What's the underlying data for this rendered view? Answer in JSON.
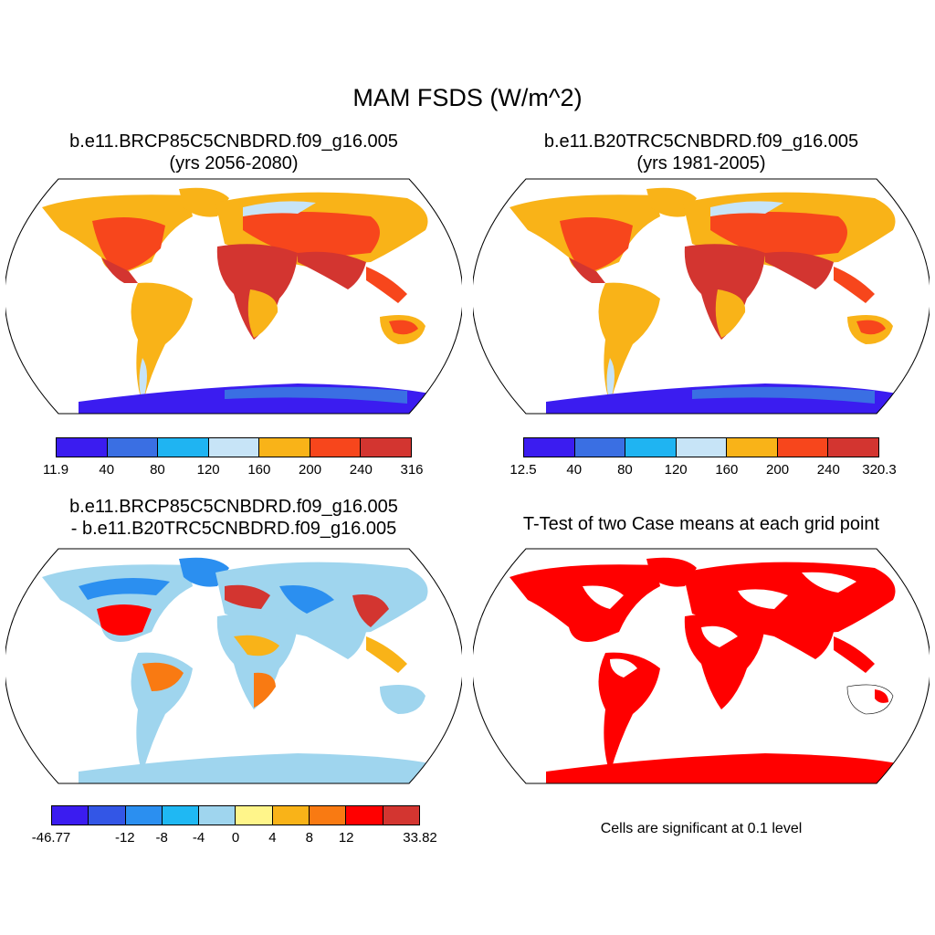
{
  "title": "MAM FSDS (W/m^2)",
  "panels": {
    "p1": {
      "line1": "b.e11.BRCP85C5CNBDRD.f09_g16.005",
      "line2": "(yrs 2056-2080)"
    },
    "p2": {
      "line1": "b.e11.B20TRC5CNBDRD.f09_g16.005",
      "line2": "(yrs 1981-2005)"
    },
    "p3": {
      "line1": "b.e11.BRCP85C5CNBDRD.f09_g16.005",
      "line2": "- b.e11.B20TRC5CNBDRD.f09_g16.005"
    },
    "p4": {
      "line1": "T-Test of two Case means at each grid point"
    }
  },
  "colorbars": {
    "cb1": {
      "colors": [
        "#3b1cf0",
        "#3a6fe3",
        "#1fb4f2",
        "#c7e4f7",
        "#f9b318",
        "#f7461c",
        "#d33530"
      ],
      "ticks": [
        "11.9",
        "40",
        "80",
        "120",
        "160",
        "200",
        "240",
        "316"
      ]
    },
    "cb2": {
      "colors": [
        "#3b1cf0",
        "#3a6fe3",
        "#1fb4f2",
        "#c7e4f7",
        "#f9b318",
        "#f7461c",
        "#d33530"
      ],
      "ticks": [
        "12.5",
        "40",
        "80",
        "120",
        "160",
        "200",
        "240",
        "320.3"
      ]
    },
    "cb3": {
      "colors": [
        "#3b1cf0",
        "#3356e6",
        "#2b8ff0",
        "#1fb8f3",
        "#9fd5ee",
        "#fff58a",
        "#f9b318",
        "#f97a12",
        "#ff0000",
        "#d33530"
      ],
      "ticks": [
        "-46.77",
        "",
        "-12",
        "-8",
        "-4",
        "0",
        "4",
        "8",
        "12",
        "",
        "33.82"
      ]
    }
  },
  "significance_note": "Cells are significant at 0.1 level",
  "legend_colors": {
    "significant": "#ff0000",
    "land_outline": "#000000"
  }
}
